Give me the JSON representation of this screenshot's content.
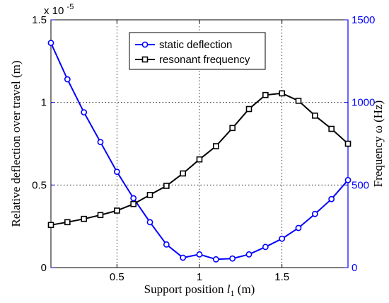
{
  "chart_data": {
    "type": "line",
    "x": [
      0.1,
      0.2,
      0.3,
      0.4,
      0.5,
      0.6,
      0.7,
      0.8,
      0.9,
      1.0,
      1.1,
      1.2,
      1.3,
      1.4,
      1.5,
      1.6,
      1.7,
      1.8,
      1.9
    ],
    "xlim": [
      0.1,
      1.9
    ],
    "xticks": [
      "0.5",
      "1",
      "1.5"
    ],
    "xtick_values": [
      0.5,
      1.0,
      1.5
    ],
    "xlabel": "Support position l₁ (m)",
    "xlabel_parts": {
      "pre": "Support position ",
      "var": "l",
      "sub": "1",
      "post": " (m)"
    },
    "yleft": {
      "label": "Relative deflection over  travel   (m)",
      "lim": [
        0,
        1.5
      ],
      "ticks": [
        "0",
        "0.5",
        "1",
        "1.5"
      ],
      "tick_values": [
        0,
        0.5,
        1.0,
        1.5
      ],
      "exponent_label": "x 10",
      "exponent_power": "-5",
      "color": "#0000ff"
    },
    "yright": {
      "label": "Frequency ω (Hz)",
      "lim": [
        0,
        1500
      ],
      "ticks": [
        "0",
        "500",
        "1000",
        "1500"
      ],
      "tick_values": [
        0,
        500,
        1000,
        1500
      ],
      "color": "#0000ff"
    },
    "grid": true,
    "legend_position": "top-center",
    "series": [
      {
        "name": "static deflection",
        "axis": "left",
        "color": "#0000ff",
        "marker": "circle",
        "values": [
          1.36,
          1.14,
          0.94,
          0.76,
          0.58,
          0.42,
          0.275,
          0.14,
          0.06,
          0.08,
          0.05,
          0.055,
          0.08,
          0.125,
          0.175,
          0.24,
          0.325,
          0.415,
          0.53
        ]
      },
      {
        "name": "resonant frequency",
        "axis": "right",
        "color": "#000000",
        "marker": "square",
        "values": [
          258,
          275,
          295,
          318,
          345,
          385,
          440,
          495,
          570,
          655,
          735,
          845,
          960,
          1045,
          1055,
          1010,
          920,
          840,
          750
        ]
      }
    ]
  }
}
